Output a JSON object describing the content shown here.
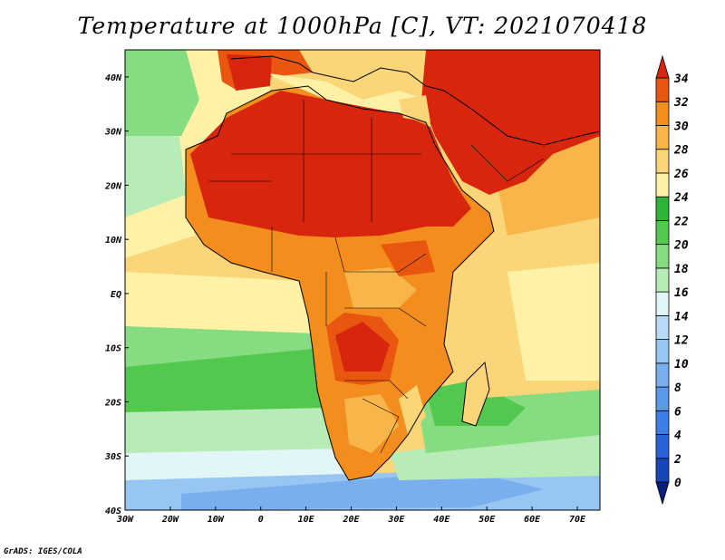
{
  "title": "Temperature at 1000hPa [C], VT: 2021070418",
  "credit": "GrADS: IGES/COLA",
  "map": {
    "lon_range": [
      -30,
      75
    ],
    "lat_range": [
      -40,
      45
    ],
    "lon_ticks": [
      {
        "value": -30,
        "label": "30W"
      },
      {
        "value": -20,
        "label": "20W"
      },
      {
        "value": -10,
        "label": "10W"
      },
      {
        "value": 0,
        "label": "0"
      },
      {
        "value": 10,
        "label": "10E"
      },
      {
        "value": 20,
        "label": "20E"
      },
      {
        "value": 30,
        "label": "30E"
      },
      {
        "value": 40,
        "label": "40E"
      },
      {
        "value": 50,
        "label": "50E"
      },
      {
        "value": 60,
        "label": "60E"
      },
      {
        "value": 70,
        "label": "70E"
      }
    ],
    "lat_ticks": [
      {
        "value": 40,
        "label": "40N"
      },
      {
        "value": 30,
        "label": "30N"
      },
      {
        "value": 20,
        "label": "20N"
      },
      {
        "value": 10,
        "label": "10N"
      },
      {
        "value": 0,
        "label": "EQ"
      },
      {
        "value": -10,
        "label": "10S"
      },
      {
        "value": -20,
        "label": "20S"
      },
      {
        "value": -30,
        "label": "30S"
      },
      {
        "value": -40,
        "label": "40S"
      }
    ]
  },
  "colorbar": {
    "labels": [
      "0",
      "2",
      "4",
      "6",
      "8",
      "10",
      "12",
      "14",
      "16",
      "18",
      "20",
      "22",
      "24",
      "26",
      "28",
      "30",
      "32",
      "34"
    ],
    "colors": [
      "#0a1f7a",
      "#1746b8",
      "#2a63d8",
      "#3b7fe6",
      "#5b98ea",
      "#79afee",
      "#98c6f2",
      "#b9daf6",
      "#e2f6f8",
      "#b8ecb6",
      "#86dc80",
      "#52c84e",
      "#2db43a",
      "#fff1a6",
      "#fbd679",
      "#f7b54a",
      "#f28d1e",
      "#e8560f",
      "#d8250e"
    ]
  }
}
